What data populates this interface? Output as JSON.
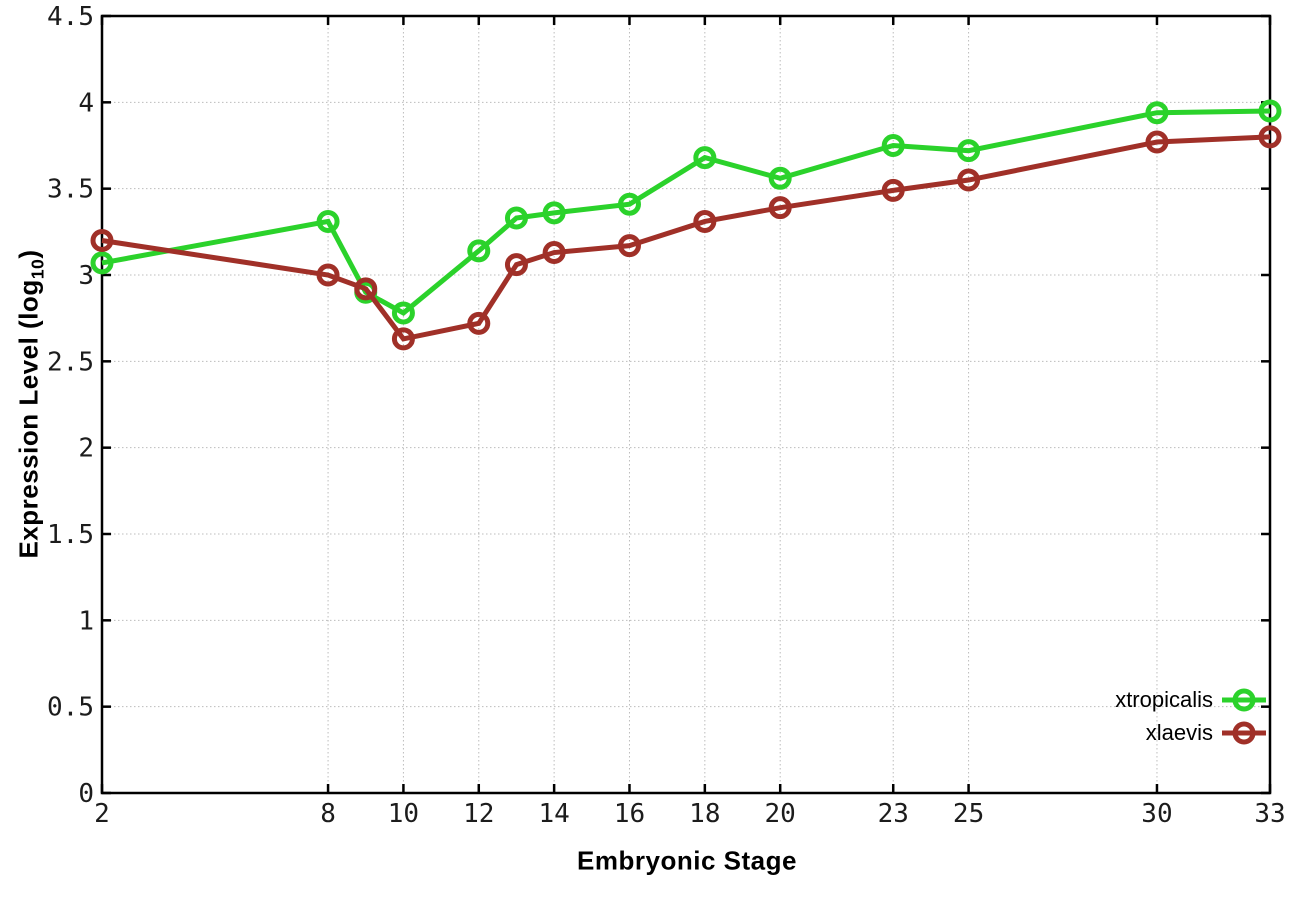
{
  "chart_data": {
    "type": "line",
    "title": "",
    "xlabel": "Embryonic Stage",
    "ylabel": {
      "text": "Expression Level (log",
      "sub": "10",
      "close": ")"
    },
    "ylabel_plain": "Expression Level (log10)",
    "x": [
      2,
      8,
      9,
      10,
      12,
      13,
      14,
      16,
      18,
      20,
      23,
      25,
      30,
      33
    ],
    "series": [
      {
        "name": "xtropicalis",
        "color": "#2bd22b",
        "marker": "open-circle",
        "values": [
          3.07,
          3.31,
          2.9,
          2.78,
          3.14,
          3.33,
          3.36,
          3.41,
          3.68,
          3.56,
          3.75,
          3.72,
          3.94,
          3.95
        ]
      },
      {
        "name": "xlaevis",
        "color": "#a03028",
        "marker": "open-circle",
        "values": [
          3.2,
          3.0,
          2.92,
          2.63,
          2.72,
          3.06,
          3.13,
          3.17,
          3.31,
          3.39,
          3.49,
          3.55,
          3.77,
          3.8
        ]
      }
    ],
    "xlim": [
      2,
      33
    ],
    "ylim": [
      0,
      4.5
    ],
    "xticks": [
      2,
      8,
      10,
      12,
      14,
      16,
      18,
      20,
      23,
      25,
      30,
      33
    ],
    "xtick_labels": [
      "2",
      "8",
      "10",
      "12",
      "14",
      "16",
      "18",
      "20",
      "23",
      "25",
      "30",
      "33"
    ],
    "yticks": [
      0,
      0.5,
      1,
      1.5,
      2,
      2.5,
      3,
      3.5,
      4,
      4.5
    ],
    "ytick_labels": [
      "0",
      "0.5",
      "1",
      "1.5",
      "2",
      "2.5",
      "3",
      "3.5",
      "4",
      "4.5"
    ],
    "grid": true,
    "grid_color": "#bcbcbc",
    "axis_color": "#000000",
    "background_color": "#ffffff",
    "legend_position": "inside-bottom-right"
  }
}
